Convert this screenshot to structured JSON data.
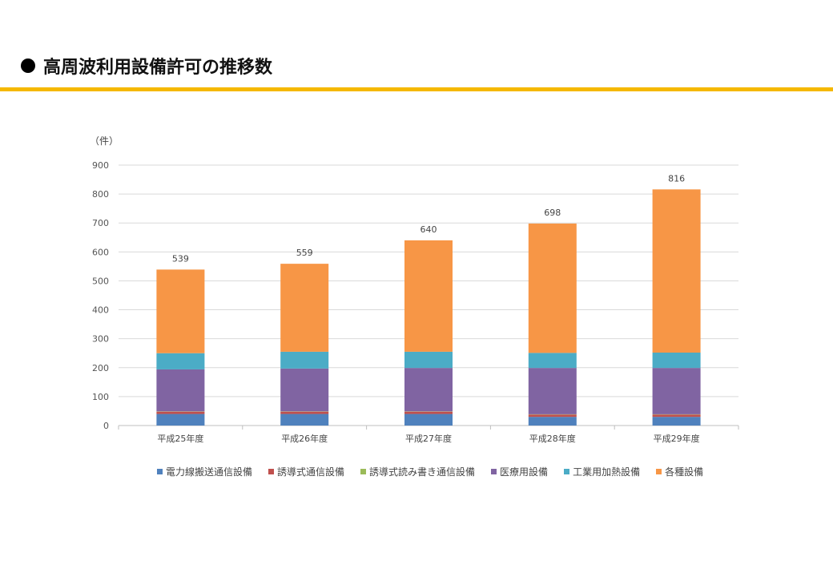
{
  "page": {
    "title": "高周波利用設備許可の推移数"
  },
  "chart_data": {
    "type": "bar",
    "stacked": true,
    "unit_label": "（件）",
    "categories": [
      "平成25年度",
      "平成26年度",
      "平成27年度",
      "平成28年度",
      "平成29年度"
    ],
    "ylim": [
      0,
      900
    ],
    "yticks": [
      0,
      100,
      200,
      300,
      400,
      500,
      600,
      700,
      800,
      900
    ],
    "grid": true,
    "legend_position": "bottom",
    "totals": [
      539,
      559,
      640,
      698,
      816
    ],
    "series": [
      {
        "name": "電力線搬送通信設備",
        "color": "#4f81bd",
        "values": [
          40,
          40,
          40,
          30,
          30
        ]
      },
      {
        "name": "誘導式通信設備",
        "color": "#c0504d",
        "values": [
          8,
          8,
          8,
          8,
          8
        ]
      },
      {
        "name": "誘導式読み書き通信設備",
        "color": "#9bbb59",
        "values": [
          1,
          1,
          1,
          1,
          1
        ]
      },
      {
        "name": "医療用設備",
        "color": "#8064a2",
        "values": [
          145,
          148,
          150,
          160,
          160
        ]
      },
      {
        "name": "工業用加熱設備",
        "color": "#4bacc6",
        "values": [
          56,
          58,
          56,
          52,
          53
        ]
      },
      {
        "name": "各種設備",
        "color": "#f79646",
        "values": [
          289,
          304,
          385,
          447,
          564
        ]
      }
    ]
  }
}
